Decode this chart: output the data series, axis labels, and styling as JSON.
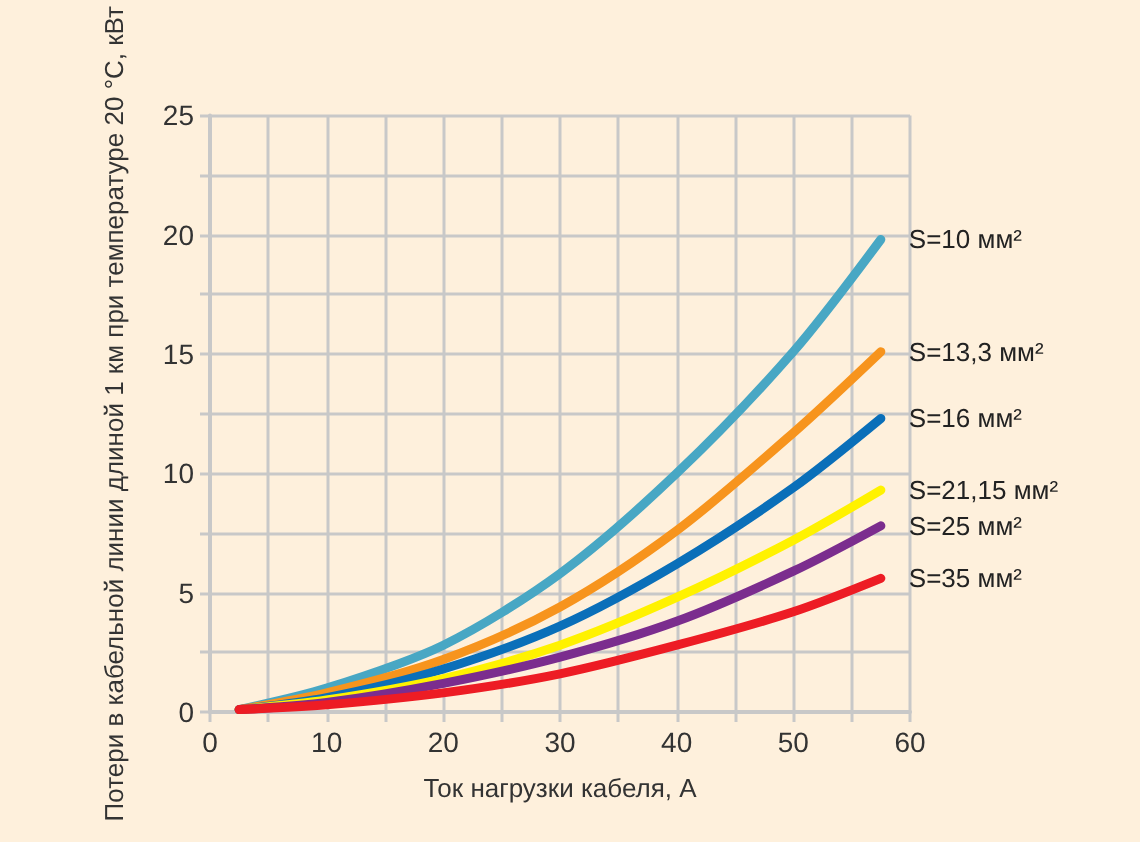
{
  "chart_data": {
    "type": "line",
    "xlabel": "Ток нагрузки кабеля, А",
    "ylabel": "Потери в кабельной линии длиной 1 км при температуре 20 °C, кВт",
    "x": [
      2.5,
      10,
      20,
      30,
      40,
      50,
      57.5
    ],
    "series": [
      {
        "name": "S=10 мм²",
        "color": "#48a7c4",
        "values": [
          0.1,
          1.0,
          2.8,
          5.8,
          10.0,
          15.1,
          19.8
        ]
      },
      {
        "name": "S=13,3 мм²",
        "color": "#f7941d",
        "values": [
          0.1,
          0.8,
          2.2,
          4.4,
          7.6,
          11.7,
          15.1
        ]
      },
      {
        "name": "S=16 мм²",
        "color": "#0a6fb9",
        "values": [
          0.1,
          0.6,
          1.8,
          3.6,
          6.2,
          9.4,
          12.3
        ]
      },
      {
        "name": "S=21,15 мм²",
        "color": "#fff200",
        "values": [
          0.1,
          0.5,
          1.4,
          2.8,
          4.8,
          7.2,
          9.3
        ]
      },
      {
        "name": "S=25 мм²",
        "color": "#7b2d8e",
        "values": [
          0.1,
          0.4,
          1.2,
          2.3,
          3.8,
          5.9,
          7.8
        ]
      },
      {
        "name": "S=35 мм²",
        "color": "#ed1c24",
        "values": [
          0.1,
          0.3,
          0.8,
          1.6,
          2.8,
          4.2,
          5.6
        ]
      }
    ],
    "xlim": [
      0,
      60
    ],
    "xticks": [
      0,
      10,
      20,
      30,
      40,
      50,
      60
    ],
    "ylim": [
      0,
      25
    ],
    "yticks": [
      0,
      5,
      10,
      15,
      20,
      25
    ],
    "grid": true,
    "legend": false,
    "marker": "none",
    "line_style": "solid"
  }
}
